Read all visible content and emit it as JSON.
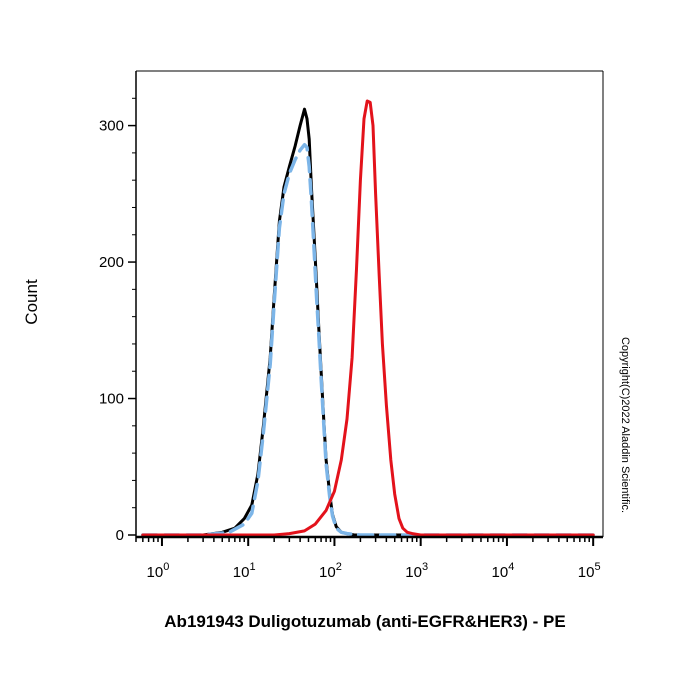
{
  "chart_data": {
    "type": "line",
    "title": "",
    "xlabel": "Ab191943 Duligotuzumab (anti-EGFR&HER3) - PE",
    "ylabel": "Count",
    "xscale": "log",
    "xlim": [
      0.5,
      130000
    ],
    "ylim": [
      0,
      340
    ],
    "grid": false,
    "x_tick_labels": [
      {
        "base": "10",
        "exp": "0",
        "value": 1
      },
      {
        "base": "10",
        "exp": "1",
        "value": 10
      },
      {
        "base": "10",
        "exp": "2",
        "value": 100
      },
      {
        "base": "10",
        "exp": "3",
        "value": 1000
      },
      {
        "base": "10",
        "exp": "4",
        "value": 10000
      },
      {
        "base": "10",
        "exp": "5",
        "value": 100000
      }
    ],
    "y_ticks": [
      0,
      100,
      200,
      300
    ],
    "y_tick_labels": [
      "0",
      "100",
      "200",
      "300"
    ],
    "series": [
      {
        "color": "#000000",
        "style": "solid",
        "x": [
          0.6,
          3,
          5,
          7,
          9,
          11,
          13,
          15,
          18,
          20,
          23,
          26,
          30,
          35,
          40,
          45,
          48,
          51,
          54,
          58,
          62,
          66,
          70,
          75,
          80,
          88,
          95,
          105,
          120,
          140,
          170,
          250,
          1000,
          100000
        ],
        "y": [
          0,
          0,
          2,
          5,
          12,
          22,
          45,
          80,
          130,
          175,
          230,
          255,
          270,
          285,
          300,
          312,
          305,
          290,
          255,
          220,
          185,
          150,
          120,
          85,
          55,
          30,
          15,
          6,
          2,
          1,
          0,
          0,
          0,
          0
        ]
      },
      {
        "color": "#7cb5e8",
        "style": "dashed",
        "x": [
          0.6,
          3,
          6,
          9,
          11,
          13,
          15,
          18,
          20,
          23,
          26,
          30,
          35,
          40,
          45,
          48,
          51,
          54,
          58,
          62,
          66,
          70,
          75,
          80,
          88,
          95,
          105,
          120,
          140,
          200,
          1000,
          100000
        ],
        "y": [
          0,
          0,
          2,
          8,
          16,
          40,
          75,
          125,
          170,
          225,
          250,
          265,
          275,
          282,
          286,
          284,
          270,
          245,
          210,
          175,
          145,
          115,
          82,
          52,
          28,
          14,
          5,
          2,
          1,
          0,
          0,
          0
        ]
      },
      {
        "color": "#e3121b",
        "style": "solid",
        "x": [
          0.6,
          20,
          30,
          45,
          60,
          80,
          100,
          120,
          140,
          160,
          180,
          200,
          220,
          240,
          260,
          280,
          300,
          330,
          360,
          400,
          450,
          500,
          560,
          620,
          700,
          800,
          1000,
          100000
        ],
        "y": [
          0,
          0,
          1,
          3,
          8,
          18,
          32,
          55,
          85,
          130,
          195,
          260,
          305,
          318,
          317,
          300,
          250,
          190,
          140,
          95,
          55,
          30,
          12,
          5,
          2,
          1,
          0,
          0
        ]
      }
    ]
  },
  "watermark": "Copyright(C)2022 Aladdin Scientific."
}
